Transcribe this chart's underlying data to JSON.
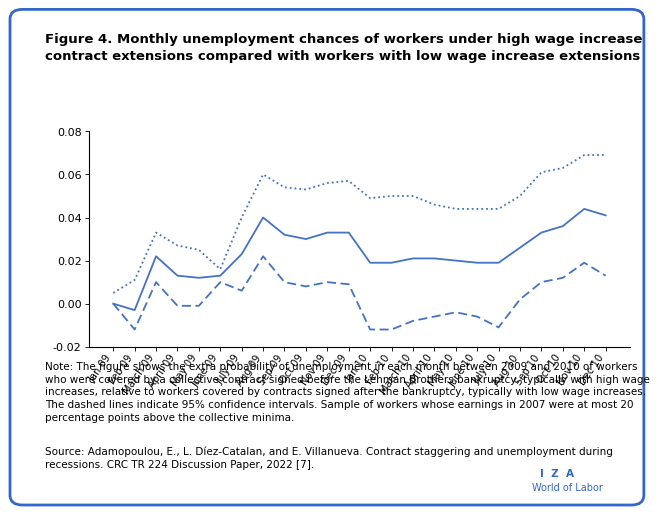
{
  "title": "Figure 4. Monthly unemployment chances of workers under high wage increase\ncontract extensions compared with workers with low wage increase extensions",
  "x_labels": [
    "Jan 09",
    "Feb 09",
    "March 09",
    "April 09",
    "May 09",
    "June 09",
    "July 09",
    "Aug 09",
    "Sep 09",
    "Oct 09",
    "Nov 09",
    "Dec 09",
    "Jan 10",
    "Feb 10",
    "March 10",
    "April 10",
    "May 10",
    "June 10",
    "July 10",
    "Aug 10",
    "Sep 10",
    "Oct 10",
    "Nov 10",
    "Dec 10"
  ],
  "main_line": [
    0.0,
    -0.003,
    0.022,
    0.013,
    0.012,
    0.013,
    0.023,
    0.04,
    0.032,
    0.03,
    0.033,
    0.033,
    0.019,
    0.019,
    0.021,
    0.021,
    0.02,
    0.019,
    0.019,
    0.026,
    0.033,
    0.036,
    0.044,
    0.041
  ],
  "upper_ci": [
    0.005,
    0.011,
    0.033,
    0.027,
    0.025,
    0.016,
    0.04,
    0.06,
    0.054,
    0.053,
    0.056,
    0.057,
    0.049,
    0.05,
    0.05,
    0.046,
    0.044,
    0.044,
    0.044,
    0.05,
    0.061,
    0.063,
    0.069,
    0.069
  ],
  "lower_ci": [
    0.0,
    -0.012,
    0.01,
    -0.001,
    -0.001,
    0.01,
    0.006,
    0.022,
    0.01,
    0.008,
    0.01,
    0.009,
    -0.012,
    -0.012,
    -0.008,
    -0.006,
    -0.004,
    -0.006,
    -0.011,
    0.002,
    0.01,
    0.012,
    0.019,
    0.013
  ],
  "line_color": "#4472C4",
  "ylim": [
    -0.02,
    0.08
  ],
  "yticks": [
    -0.02,
    0.0,
    0.02,
    0.04,
    0.06,
    0.08
  ],
  "note_italic_prefix": "Note:",
  "note_rest": " The figure shows the extra probability of unemployment in each month between 2009 and 2010 of workers who were covered by a collective contract signed before the Lehman Brothers bankruptcy, typically with high wage increases, relative to workers covered by contracts signed after the bankruptcy, typically with low wage increases. The dashed lines indicate 95% confidence intervals. Sample of workers whose earnings in 2007 were at most 20 percentage points above the collective minima.",
  "source_italic_prefix": "Source:",
  "source_normal_part1": " Adamopoulou, E., L. Díez-Catalan, and E. Villanueva. ",
  "source_italic_part": "Contract staggering and unemployment during recessions.",
  "source_normal_part2": " CRC TR 224 Discussion Paper, 2022 [7].",
  "bg_color": "#FFFFFF",
  "plot_bg_color": "#FFFFFF",
  "border_color": "#3366CC"
}
